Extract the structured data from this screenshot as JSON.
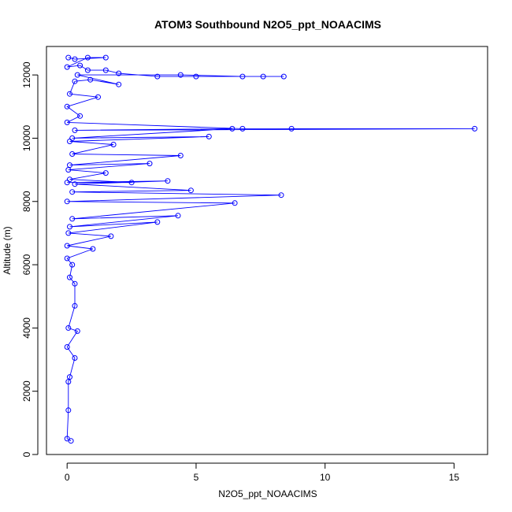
{
  "chart_data": {
    "type": "scatter",
    "mode": "points+lines",
    "title": "ATOM3 Southbound N2O5_ppt_NOAACIMS",
    "xlabel": "N2O5_ppt_NOAACIMS",
    "ylabel": "Altitude (m)",
    "xlim": [
      -0.8,
      16.3
    ],
    "ylim": [
      0,
      12900
    ],
    "xticks": [
      0,
      5,
      10,
      15
    ],
    "yticks": [
      0,
      2000,
      4000,
      6000,
      8000,
      10000,
      12000
    ],
    "xtick_labels": [
      "0",
      "5",
      "10",
      "15"
    ],
    "ytick_labels": [
      "0",
      "2000",
      "4000",
      "6000",
      "8000",
      "10000",
      "12000"
    ],
    "grid": false,
    "series": [
      {
        "color": "#0000ff",
        "marker": "open-circle",
        "points": [
          [
            0.15,
            430
          ],
          [
            0.0,
            500
          ],
          [
            0.05,
            1400
          ],
          [
            0.05,
            2300
          ],
          [
            0.1,
            2450
          ],
          [
            0.3,
            3050
          ],
          [
            0.0,
            3400
          ],
          [
            0.4,
            3900
          ],
          [
            0.05,
            4000
          ],
          [
            0.3,
            4700
          ],
          [
            0.3,
            5400
          ],
          [
            0.1,
            5600
          ],
          [
            0.2,
            6000
          ],
          [
            0.0,
            6200
          ],
          [
            1.0,
            6500
          ],
          [
            0.0,
            6600
          ],
          [
            1.7,
            6900
          ],
          [
            0.05,
            7000
          ],
          [
            3.5,
            7350
          ],
          [
            0.1,
            7200
          ],
          [
            4.3,
            7550
          ],
          [
            0.2,
            7450
          ],
          [
            6.5,
            7950
          ],
          [
            0.0,
            8000
          ],
          [
            8.3,
            8200
          ],
          [
            0.2,
            8300
          ],
          [
            4.8,
            8350
          ],
          [
            0.3,
            8550
          ],
          [
            3.9,
            8650
          ],
          [
            0.0,
            8600
          ],
          [
            2.5,
            8600
          ],
          [
            0.1,
            8700
          ],
          [
            1.5,
            8900
          ],
          [
            0.05,
            9000
          ],
          [
            3.2,
            9200
          ],
          [
            0.1,
            9150
          ],
          [
            4.4,
            9450
          ],
          [
            0.2,
            9500
          ],
          [
            1.8,
            9800
          ],
          [
            0.1,
            9900
          ],
          [
            5.5,
            10050
          ],
          [
            0.2,
            10000
          ],
          [
            6.4,
            10300
          ],
          [
            0.3,
            10250
          ],
          [
            15.8,
            10300
          ],
          [
            8.7,
            10300
          ],
          [
            6.8,
            10300
          ],
          [
            0.0,
            10500
          ],
          [
            0.5,
            10700
          ],
          [
            0.0,
            11000
          ],
          [
            1.2,
            11300
          ],
          [
            0.1,
            11400
          ],
          [
            0.3,
            11800
          ],
          [
            0.9,
            11850
          ],
          [
            2.0,
            11700
          ],
          [
            0.4,
            12000
          ],
          [
            4.4,
            12000
          ],
          [
            6.8,
            11950
          ],
          [
            8.4,
            11950
          ],
          [
            7.6,
            11950
          ],
          [
            5.0,
            11950
          ],
          [
            3.5,
            11950
          ],
          [
            2.0,
            12050
          ],
          [
            1.5,
            12150
          ],
          [
            0.8,
            12150
          ],
          [
            0.5,
            12300
          ],
          [
            0.0,
            12250
          ],
          [
            0.8,
            12550
          ],
          [
            1.5,
            12550
          ],
          [
            0.3,
            12500
          ],
          [
            0.05,
            12550
          ]
        ]
      }
    ]
  }
}
